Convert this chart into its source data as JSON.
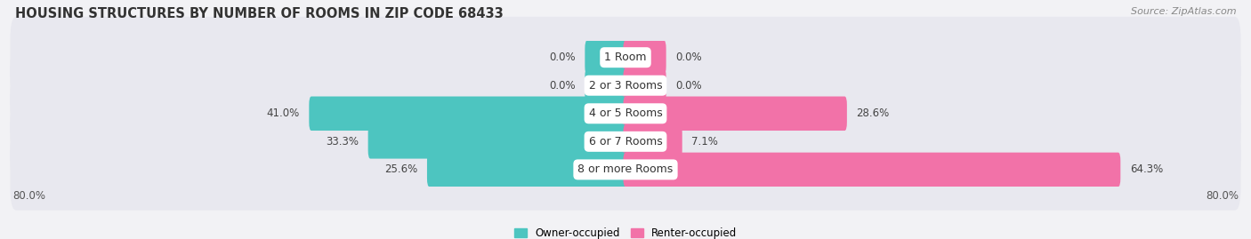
{
  "title": "HOUSING STRUCTURES BY NUMBER OF ROOMS IN ZIP CODE 68433",
  "source": "Source: ZipAtlas.com",
  "categories": [
    "1 Room",
    "2 or 3 Rooms",
    "4 or 5 Rooms",
    "6 or 7 Rooms",
    "8 or more Rooms"
  ],
  "owner_values": [
    0.0,
    0.0,
    41.0,
    33.3,
    25.6
  ],
  "renter_values": [
    0.0,
    0.0,
    28.6,
    7.1,
    64.3
  ],
  "owner_color": "#4DC5C0",
  "renter_color": "#F272A8",
  "xlim_left": -80.0,
  "xlim_right": 80.0,
  "background_color": "#f2f2f5",
  "row_bg_color": "#e8e8ef",
  "title_fontsize": 10.5,
  "source_fontsize": 8,
  "label_fontsize": 8.5,
  "cat_fontsize": 9
}
